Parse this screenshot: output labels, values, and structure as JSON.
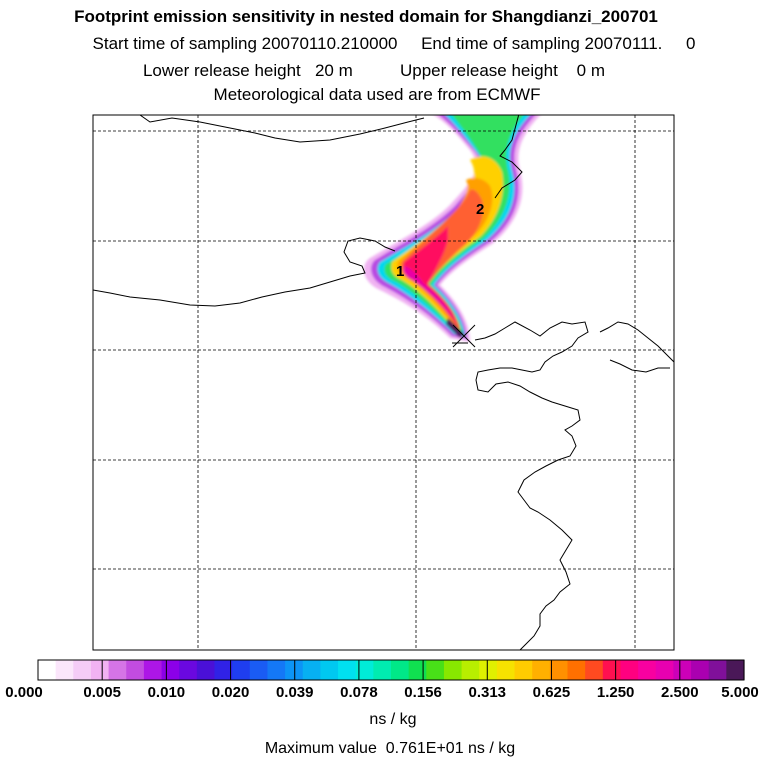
{
  "header": {
    "title": "Footprint emission sensitivity in nested domain for Shangdianzi_200701",
    "sampling": "Start time of sampling 20070110.210000     End time of sampling 20070111.     0",
    "release": "Lower release height   20 m          Upper release height    0 m",
    "met": "Meteorological data used are from ECMWF"
  },
  "map": {
    "labels": [
      "1",
      "2"
    ],
    "marker": "release-site-cross-icon"
  },
  "colorbar": {
    "ticks": [
      "0.000",
      "0.005",
      "0.010",
      "0.020",
      "0.039",
      "0.078",
      "0.156",
      "0.313",
      "0.625",
      "1.250",
      "2.500",
      "5.000"
    ],
    "colors": [
      "#ffffff",
      "#fbe6fb",
      "#f5ccf7",
      "#f1b2f3",
      "#d574e6",
      "#c24ce0",
      "#ad16e6",
      "#8c00e8",
      "#6a08e0",
      "#4a10d8",
      "#3022e6",
      "#1f3ef0",
      "#1a5cf4",
      "#1478f6",
      "#0c94f6",
      "#07b0f2",
      "#00c8f0",
      "#00e0f0",
      "#00ecd8",
      "#00ecb0",
      "#00e888",
      "#10e050",
      "#48e018",
      "#88e800",
      "#b8ee00",
      "#e0f000",
      "#f6e200",
      "#ffcc00",
      "#ffb000",
      "#ff9000",
      "#ff7000",
      "#ff4a20",
      "#ff1050",
      "#ff0080",
      "#f800a0",
      "#e800b0",
      "#cc00b8",
      "#aa00b0",
      "#80109a",
      "#4a1858"
    ],
    "unit": "ns / kg"
  },
  "footer": {
    "max_value": "Maximum value  0.761E+01 ns / kg"
  }
}
